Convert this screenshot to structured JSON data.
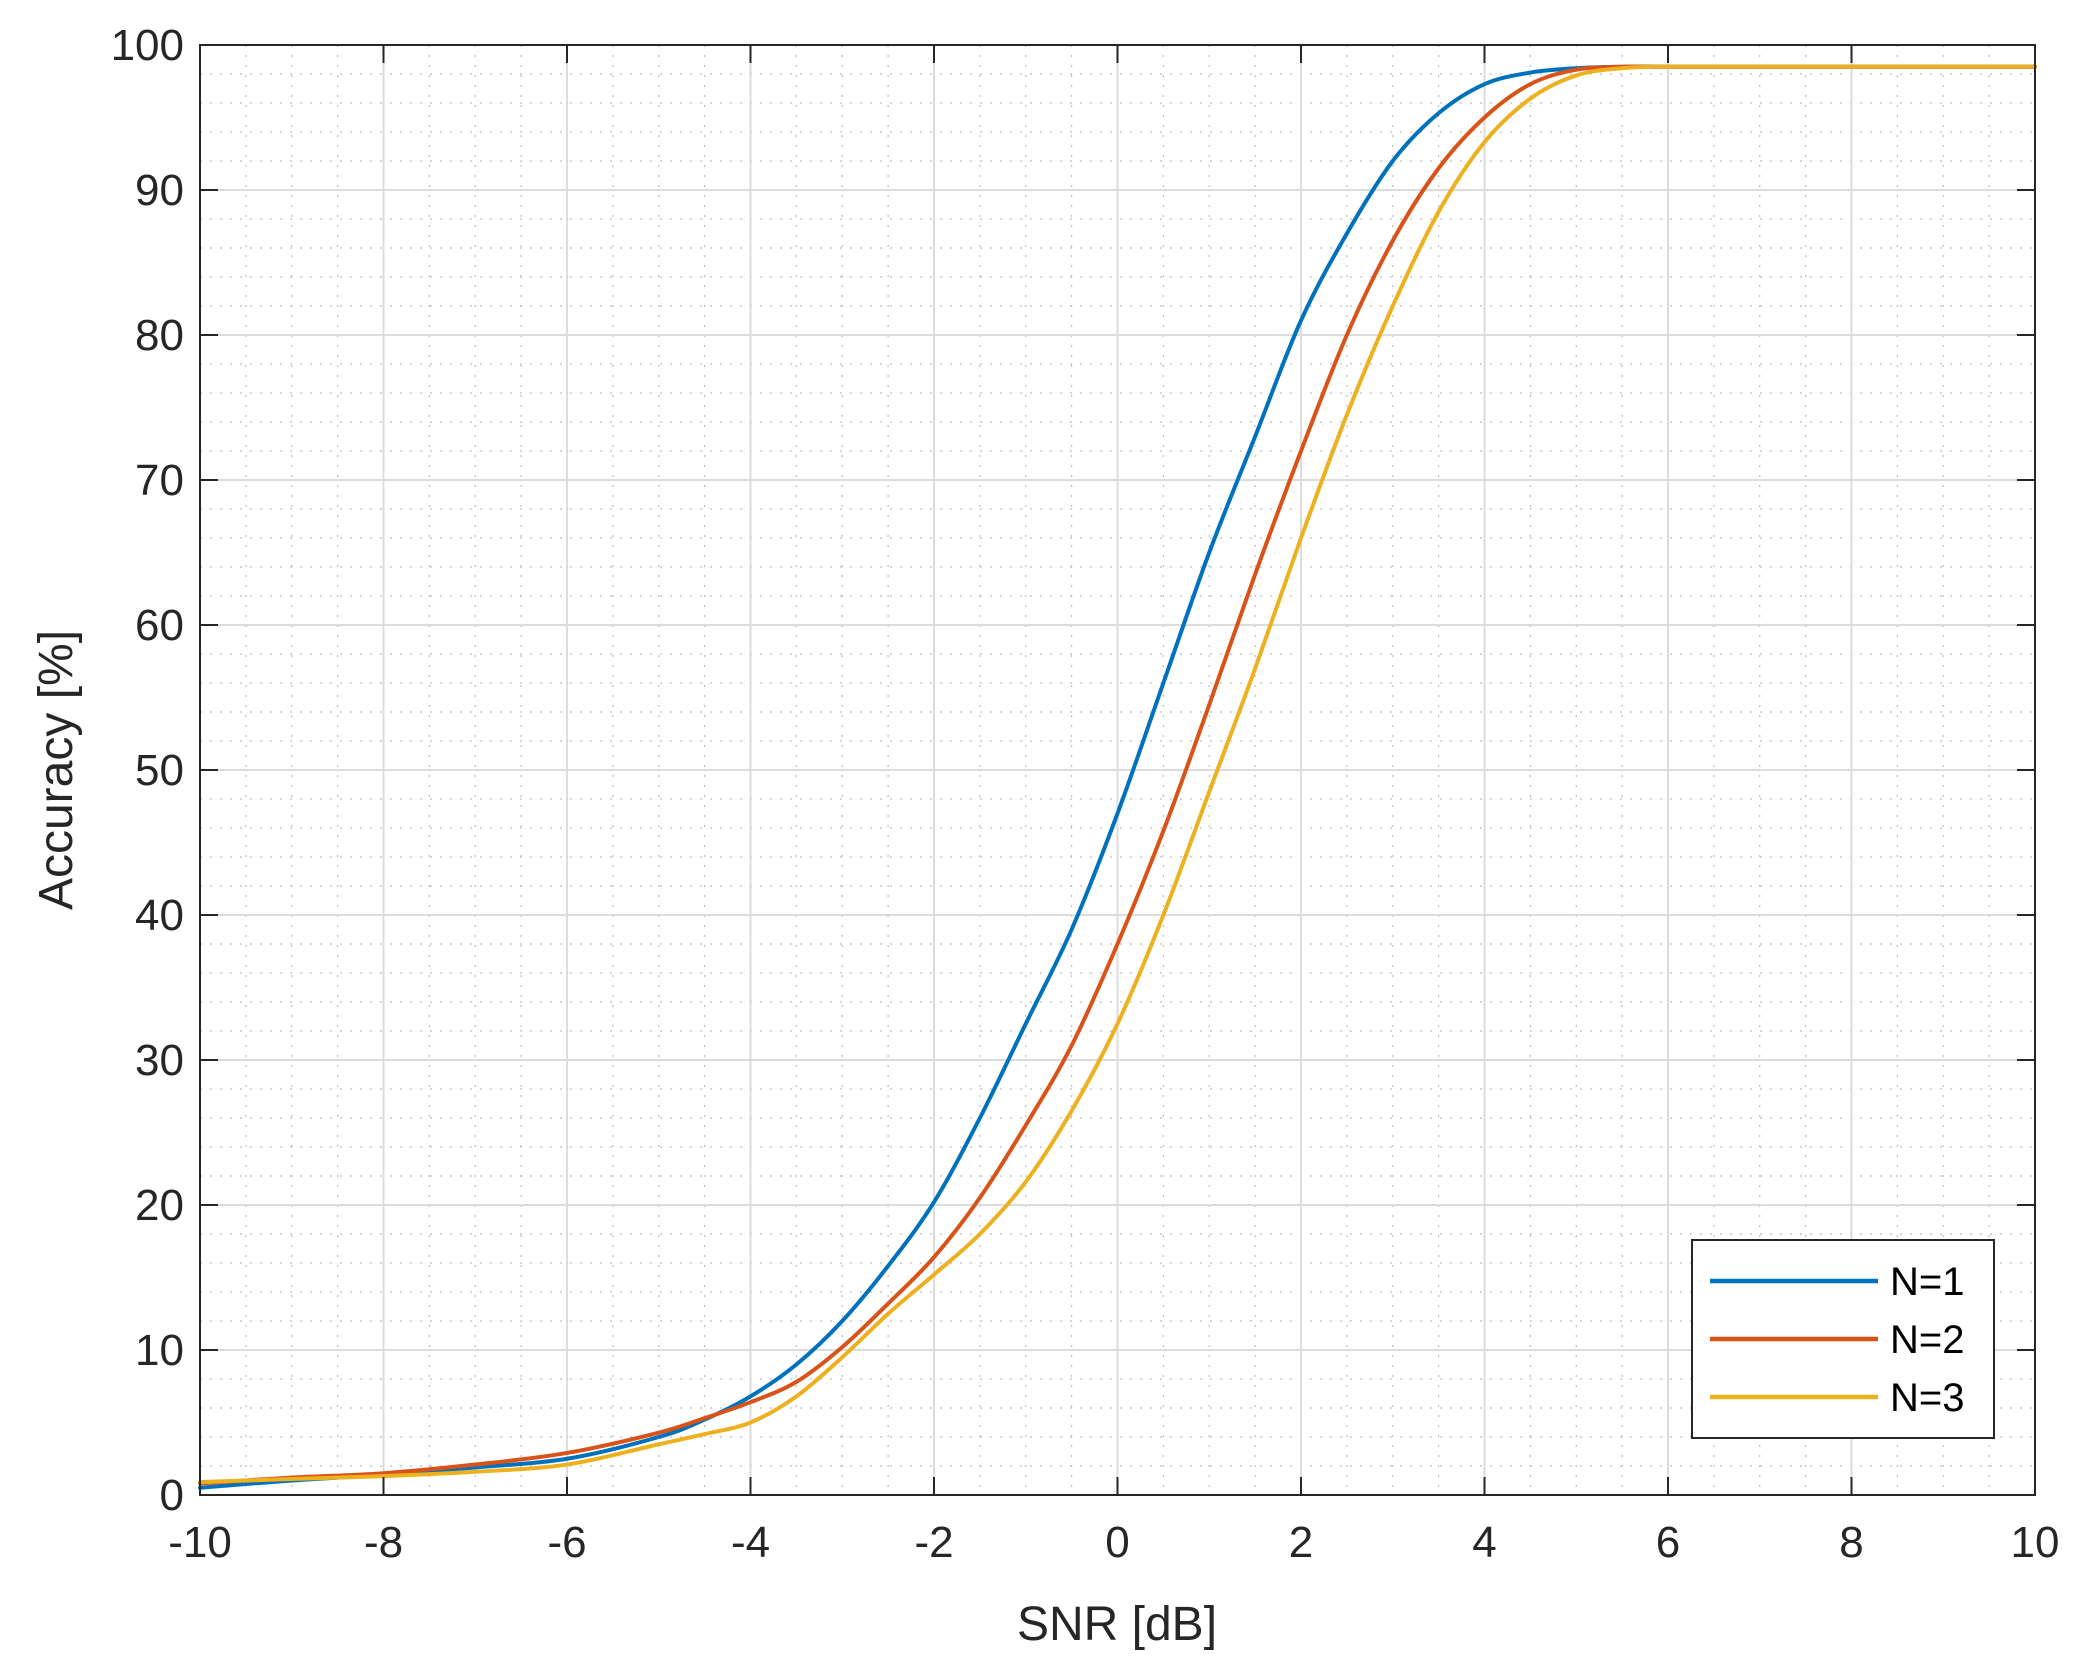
{
  "chart_data": {
    "type": "line",
    "title": "",
    "xlabel": "SNR [dB]",
    "ylabel": "Accuracy [%]",
    "xlim": [
      -10,
      10
    ],
    "ylim": [
      0,
      100
    ],
    "xticks": [
      -10,
      -8,
      -6,
      -4,
      -2,
      0,
      2,
      4,
      6,
      8,
      10
    ],
    "yticks": [
      0,
      10,
      20,
      30,
      40,
      50,
      60,
      70,
      80,
      90,
      100
    ],
    "grid": true,
    "minor_grid": true,
    "legend_position": "bottom-right",
    "x": [
      -10,
      -9,
      -8,
      -7,
      -6,
      -5,
      -4.5,
      -4,
      -3.5,
      -3,
      -2.5,
      -2,
      -1.5,
      -1,
      -0.5,
      0,
      0.5,
      1,
      1.5,
      2,
      2.5,
      3,
      3.5,
      4,
      4.5,
      5,
      5.5,
      6,
      7,
      8,
      9,
      10
    ],
    "series": [
      {
        "name": "N=1",
        "color": "#0072BD",
        "values": [
          0.5,
          1.0,
          1.4,
          1.9,
          2.5,
          4.0,
          5.2,
          6.8,
          9.0,
          12.0,
          15.8,
          20.2,
          26.0,
          32.5,
          39.0,
          47.0,
          56.0,
          65.0,
          73.0,
          81.0,
          87.0,
          92.0,
          95.3,
          97.3,
          98.1,
          98.4,
          98.5,
          98.5,
          98.5,
          98.5,
          98.5,
          98.5
        ]
      },
      {
        "name": "N=2",
        "color": "#D95319",
        "values": [
          0.8,
          1.2,
          1.5,
          2.1,
          2.9,
          4.3,
          5.3,
          6.4,
          7.8,
          10.2,
          13.2,
          16.4,
          20.5,
          25.5,
          31.0,
          38.0,
          45.8,
          54.5,
          63.5,
          72.0,
          80.0,
          86.5,
          91.5,
          95.0,
          97.3,
          98.3,
          98.5,
          98.5,
          98.5,
          98.5,
          98.5,
          98.5
        ]
      },
      {
        "name": "N=3",
        "color": "#EDB120",
        "values": [
          0.9,
          1.1,
          1.3,
          1.6,
          2.1,
          3.5,
          4.2,
          5.0,
          6.8,
          9.5,
          12.5,
          15.2,
          18.0,
          21.6,
          26.5,
          32.5,
          40.0,
          48.5,
          57.0,
          66.0,
          74.5,
          82.0,
          88.5,
          93.3,
          96.3,
          97.9,
          98.4,
          98.5,
          98.5,
          98.5,
          98.5,
          98.5
        ]
      }
    ]
  }
}
